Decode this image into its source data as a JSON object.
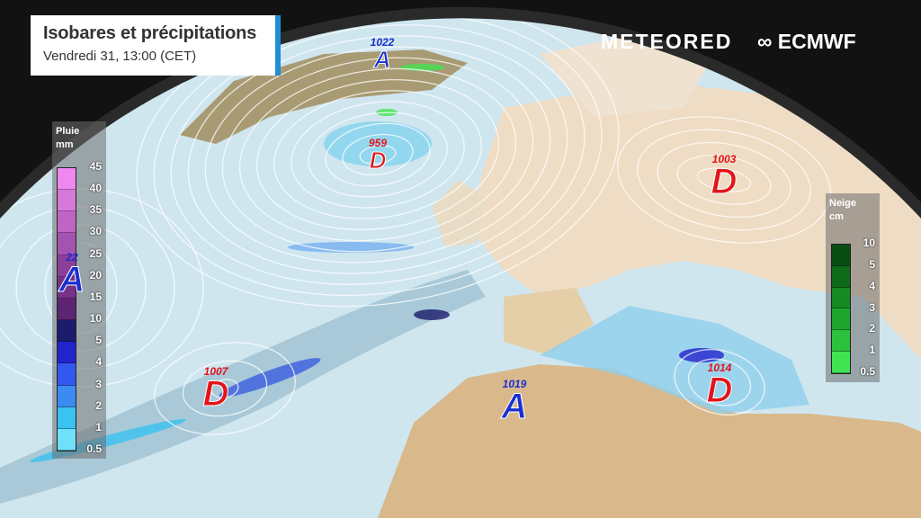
{
  "header": {
    "title": "Isobares et précipitations",
    "subtitle": "Vendredi 31, 13:00 (CET)"
  },
  "brands": {
    "meteored": "METEORED",
    "ecmwf": "ECMWF"
  },
  "rain_legend": {
    "title": "Pluie",
    "unit": "mm",
    "ticks": [
      "45",
      "40",
      "35",
      "30",
      "25",
      "20",
      "15",
      "10",
      "5",
      "4",
      "3",
      "2",
      "1",
      "0.5"
    ],
    "colors": [
      "#ee88ee",
      "#d779d8",
      "#c065c6",
      "#a553b0",
      "#8c4099",
      "#773188",
      "#5e2474",
      "#1b1c6b",
      "#2323cc",
      "#3358f0",
      "#3a8cf0",
      "#39c2f2",
      "#6fe0fa"
    ]
  },
  "snow_legend": {
    "title": "Neige",
    "unit": "cm",
    "ticks": [
      "10",
      "5",
      "4",
      "3",
      "2",
      "1",
      "0.5"
    ],
    "colors": [
      "#0a4d12",
      "#0e6a18",
      "#158a22",
      "#1ea52e",
      "#2bc13d",
      "#40e352"
    ]
  },
  "pressure_systems": [
    {
      "type": "A",
      "value": "1022",
      "color": "#1a2fd0"
    },
    {
      "type": "D",
      "value": "959",
      "color": "#e3141b"
    },
    {
      "type": "D",
      "value": "1003",
      "color": "#e3141b"
    },
    {
      "type": "A",
      "value": "22",
      "color": "#1a2fd0"
    },
    {
      "type": "D",
      "value": "1007",
      "color": "#e3141b"
    },
    {
      "type": "A",
      "value": "1019",
      "color": "#1a2fd0"
    },
    {
      "type": "D",
      "value": "1014",
      "color": "#e3141b"
    }
  ]
}
